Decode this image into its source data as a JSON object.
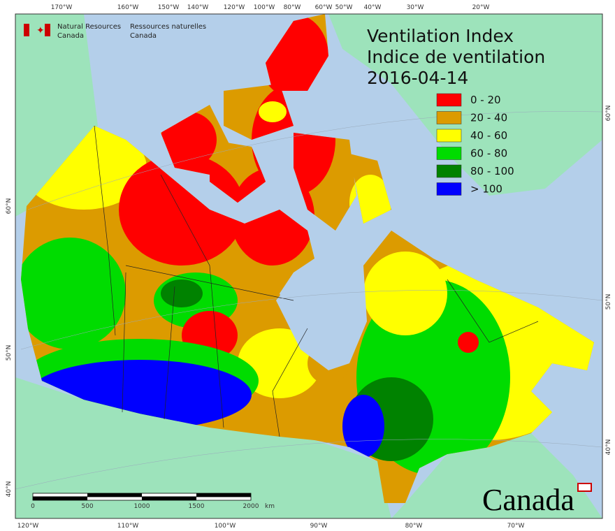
{
  "header": {
    "agency_en": [
      "Natural Resources",
      "Canada"
    ],
    "agency_fr": [
      "Ressources naturelles",
      "Canada"
    ]
  },
  "title": [
    "Ventilation Index",
    "Indice de ventilation",
    "2016-04-14"
  ],
  "legend": [
    {
      "label": "0 - 20",
      "color": "#ff0000"
    },
    {
      "label": "20 - 40",
      "color": "#dc9b00"
    },
    {
      "label": "40 - 60",
      "color": "#ffff00"
    },
    {
      "label": "60 - 80",
      "color": "#00dc00"
    },
    {
      "label": "80 - 100",
      "color": "#008200"
    },
    {
      "label": "> 100",
      "color": "#0000ff"
    }
  ],
  "graticule": {
    "top": [
      "170°W",
      "160°W",
      "150°W",
      "140°W",
      "120°W",
      "100°W",
      "80°W",
      "60°W",
      "50°W",
      "40°W",
      "30°W",
      "20°W"
    ],
    "bottom": [
      "120°W",
      "110°W",
      "100°W",
      "90°W",
      "80°W",
      "70°W"
    ],
    "left": [
      "60°N",
      "50°N",
      "40°N"
    ],
    "right": [
      "60°N",
      "50°N",
      "40°N"
    ]
  },
  "scale_bar": {
    "ticks": [
      "0",
      "500",
      "1000",
      "1500",
      "2000"
    ],
    "unit": "km"
  },
  "wordmark": "Canada"
}
